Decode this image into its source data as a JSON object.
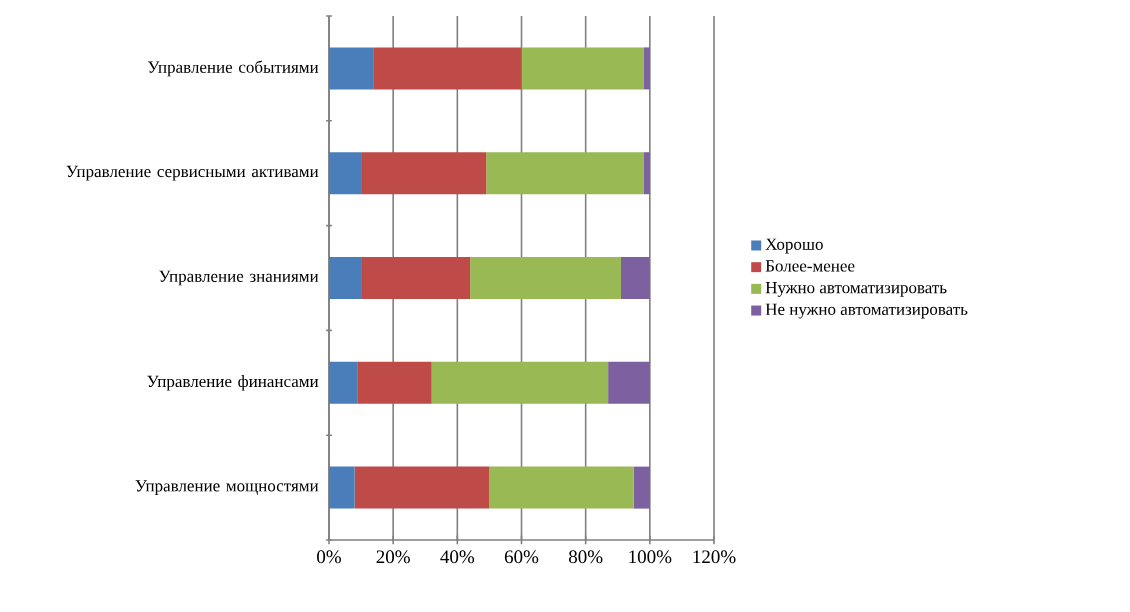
{
  "chart_data": {
    "type": "bar",
    "orientation": "horizontal",
    "stacked": true,
    "categories": [
      "Управление событиями",
      "Управление сервисными активами",
      "Управление знаниями",
      "Управление финансами",
      "Управление мощностями"
    ],
    "series": [
      {
        "name": "Хорошо",
        "color": "#4a7ebb",
        "values": [
          14,
          10,
          10,
          9,
          8
        ]
      },
      {
        "name": "Более-менее",
        "color": "#be4b48",
        "values": [
          46,
          39,
          34,
          23,
          42
        ]
      },
      {
        "name": "Нужно автоматизировать",
        "color": "#98b954",
        "values": [
          38,
          49,
          47,
          55,
          45
        ]
      },
      {
        "name": "Не нужно автоматизировать",
        "color": "#7d60a0",
        "values": [
          2,
          2,
          9,
          13,
          5
        ]
      }
    ],
    "xlim": [
      0,
      120
    ],
    "xticks": [
      {
        "value": 0,
        "label": "0%"
      },
      {
        "value": 20,
        "label": "20%"
      },
      {
        "value": 40,
        "label": "40%"
      },
      {
        "value": 60,
        "label": "60%"
      },
      {
        "value": 80,
        "label": "80%"
      },
      {
        "value": 100,
        "label": "100%"
      },
      {
        "value": 120,
        "label": "120%"
      }
    ],
    "grid": "x",
    "legend": "right"
  }
}
